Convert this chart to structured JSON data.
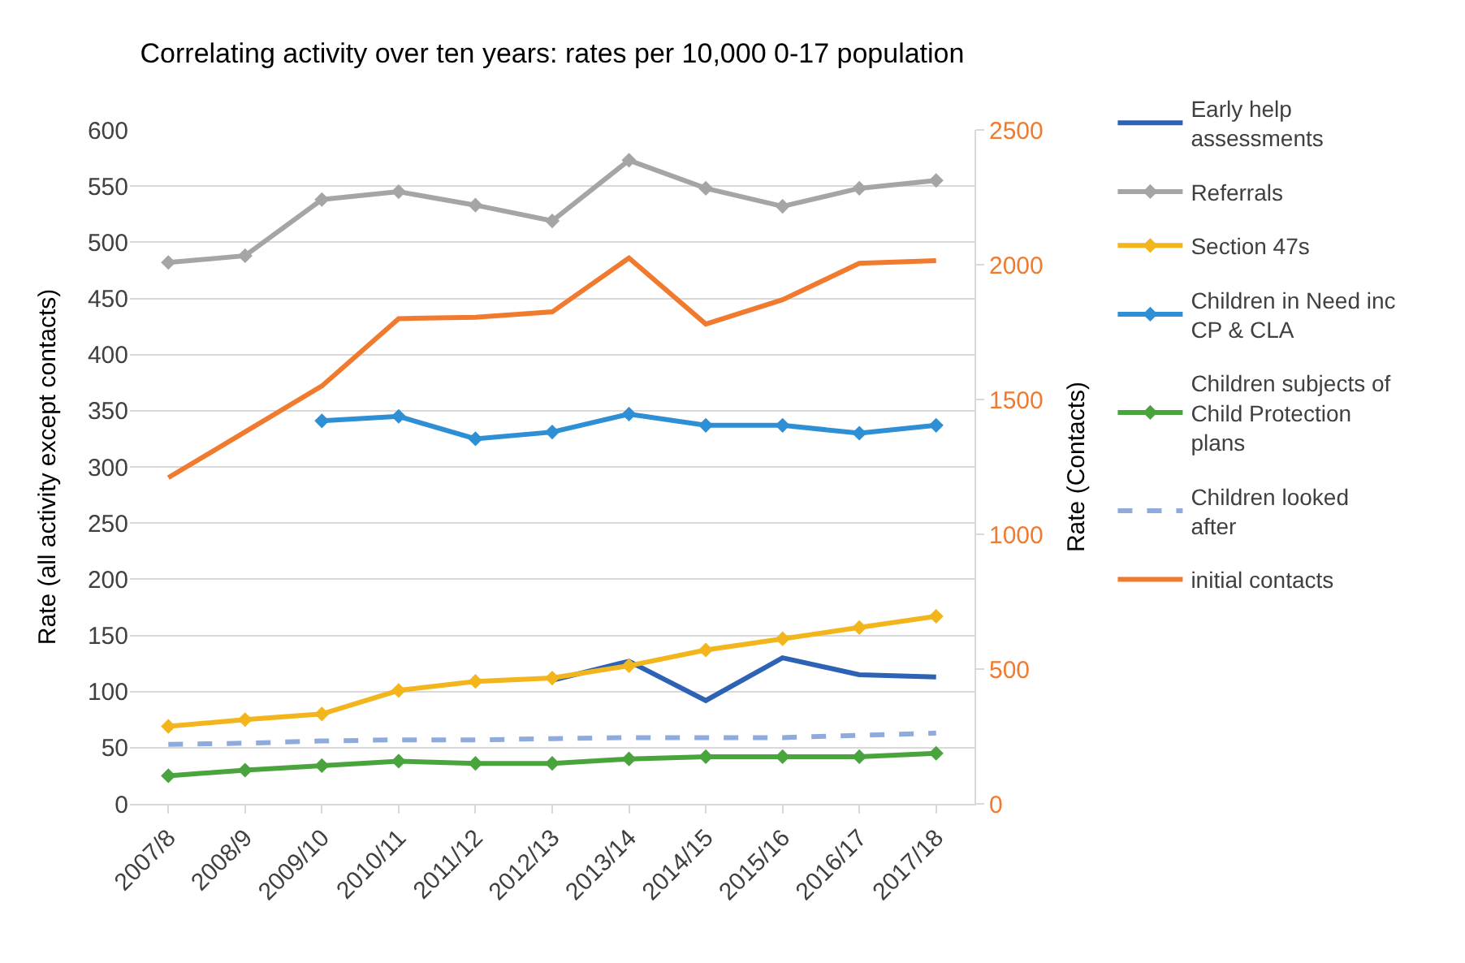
{
  "chart_data": {
    "type": "line",
    "title": "Correlating activity over ten years: rates per 10,000 0-17 population",
    "ylabel": "Rate (all activity except contacts)",
    "y2label": "Rate (Contacts)",
    "categories": [
      "2007/8",
      "2008/9",
      "2009/10",
      "2010/11",
      "2011/12",
      "2012/13",
      "2013/14",
      "2014/15",
      "2015/16",
      "2016/17",
      "2017/18"
    ],
    "ylim": [
      0,
      600
    ],
    "yticks": [
      0,
      50,
      100,
      150,
      200,
      250,
      300,
      350,
      400,
      450,
      500,
      550,
      600
    ],
    "y2lim": [
      0,
      2500
    ],
    "y2ticks": [
      0,
      500,
      1000,
      1500,
      2000,
      2500
    ],
    "grid": "y",
    "legend": "right",
    "line_style": "solid",
    "series": [
      {
        "name": "Early help assessments",
        "color": "#2e62b4",
        "marker": "none",
        "values": [
          null,
          null,
          null,
          null,
          null,
          110,
          127,
          92,
          130,
          115,
          113
        ]
      },
      {
        "name": "Referrals",
        "color": "#a5a5a5",
        "marker": "diamond",
        "values": [
          482,
          488,
          538,
          545,
          533,
          519,
          573,
          548,
          532,
          548,
          555
        ]
      },
      {
        "name": "Section 47s",
        "color": "#f2b51c",
        "marker": "diamond",
        "values": [
          69,
          75,
          80,
          101,
          109,
          112,
          123,
          137,
          147,
          157,
          167
        ]
      },
      {
        "name": "Children in Need inc CP & CLA",
        "color": "#2e8fd4",
        "marker": "diamond",
        "values": [
          null,
          null,
          341,
          345,
          325,
          331,
          347,
          337,
          337,
          330,
          337
        ]
      },
      {
        "name": "Children subjects of Child Protection plans",
        "color": "#4aa43e",
        "marker": "diamond",
        "values": [
          25,
          30,
          34,
          38,
          36,
          36,
          40,
          42,
          42,
          42,
          45
        ]
      },
      {
        "name": "Children looked after",
        "color": "#8faadc",
        "marker": "none",
        "line_style": "dashed",
        "values": [
          53,
          54,
          56,
          57,
          57,
          58,
          59,
          59,
          59,
          61,
          63
        ]
      },
      {
        "name": "initial contacts",
        "color": "#f07a2e",
        "marker": "none",
        "axis": "y2",
        "values": [
          1210,
          1380,
          1550,
          1800,
          1805,
          1825,
          2025,
          1780,
          1870,
          2005,
          2015
        ]
      }
    ]
  }
}
